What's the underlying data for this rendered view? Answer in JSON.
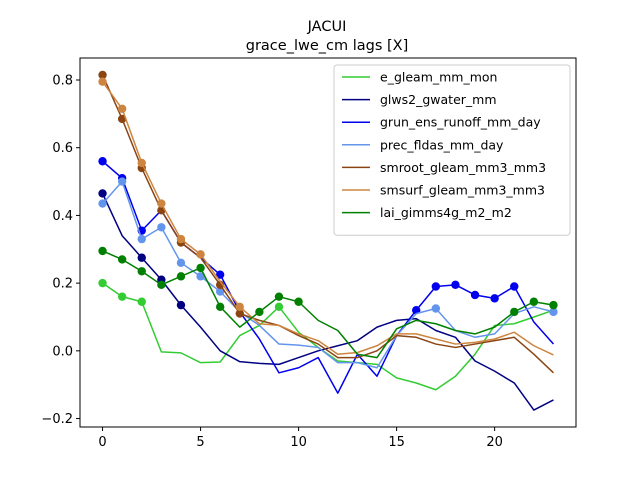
{
  "chart_data": {
    "type": "line",
    "title": "JACUI",
    "subtitle": "grace_lwe_cm lags [X]",
    "xlabel": "",
    "ylabel": "",
    "xlim": [
      -1.15,
      24.15
    ],
    "ylim": [
      -0.225,
      0.865
    ],
    "xticks": [
      0,
      5,
      10,
      15,
      20
    ],
    "yticks": [
      -0.2,
      0.0,
      0.2,
      0.4,
      0.6,
      0.8
    ],
    "ytick_labels": [
      "−0.2",
      "0.0",
      "0.2",
      "0.4",
      "0.6",
      "0.8"
    ],
    "grid": false,
    "legend_position": "upper right",
    "x": [
      0,
      1,
      2,
      3,
      4,
      5,
      6,
      7,
      8,
      9,
      10,
      11,
      12,
      13,
      14,
      15,
      16,
      17,
      18,
      19,
      20,
      21,
      22,
      23
    ],
    "series": [
      {
        "name": "e_gleam_mm_mon",
        "color": "#33cc33",
        "values": [
          0.2,
          0.16,
          0.145,
          -0.003,
          -0.006,
          -0.035,
          -0.033,
          0.045,
          0.075,
          0.13,
          0.055,
          0.01,
          -0.03,
          -0.035,
          -0.04,
          -0.08,
          -0.095,
          -0.115,
          -0.075,
          -0.01,
          0.075,
          0.08,
          0.1,
          0.12
        ],
        "markers": [
          0,
          1,
          2,
          9
        ]
      },
      {
        "name": "glws2_gwater_mm",
        "color": "#000080",
        "values": [
          0.465,
          0.34,
          0.275,
          0.21,
          0.135,
          0.07,
          0.0,
          -0.032,
          -0.037,
          -0.04,
          -0.02,
          0.0,
          0.015,
          0.03,
          0.07,
          0.09,
          0.095,
          0.06,
          0.04,
          -0.03,
          -0.06,
          -0.095,
          -0.175,
          -0.145
        ],
        "markers": [
          0,
          2,
          3,
          4
        ]
      },
      {
        "name": "grun_ens_runoff_mm_day",
        "color": "#0000ee",
        "values": [
          0.56,
          0.51,
          0.355,
          0.415,
          0.32,
          0.275,
          0.225,
          0.115,
          0.035,
          -0.065,
          -0.05,
          -0.02,
          -0.125,
          -0.01,
          -0.075,
          0.045,
          0.12,
          0.19,
          0.195,
          0.165,
          0.155,
          0.19,
          0.085,
          0.02
        ],
        "markers": [
          0,
          1,
          2,
          6,
          16,
          17,
          18,
          19,
          20,
          21
        ]
      },
      {
        "name": "prec_fldas_mm_day",
        "color": "#6495ed",
        "values": [
          0.435,
          0.5,
          0.33,
          0.365,
          0.26,
          0.22,
          0.175,
          0.115,
          0.075,
          0.02,
          0.017,
          0.01,
          -0.035,
          -0.035,
          -0.05,
          0.045,
          0.11,
          0.125,
          0.06,
          0.04,
          0.05,
          0.11,
          0.13,
          0.115
        ],
        "markers": [
          0,
          1,
          2,
          3,
          4,
          5,
          6,
          17,
          23
        ]
      },
      {
        "name": "smroot_gleam_mm3_mm3",
        "color": "#8b4513",
        "values": [
          0.815,
          0.685,
          0.54,
          0.415,
          0.32,
          0.275,
          0.195,
          0.11,
          0.09,
          0.075,
          0.045,
          0.02,
          -0.02,
          -0.02,
          0.0,
          0.045,
          0.04,
          0.02,
          0.01,
          0.02,
          0.03,
          0.04,
          -0.01,
          -0.065
        ],
        "markers": [
          0,
          1,
          2,
          3,
          4,
          6,
          7
        ]
      },
      {
        "name": "smsurf_gleam_mm3_mm3",
        "color": "#cd853f",
        "values": [
          0.795,
          0.715,
          0.555,
          0.435,
          0.33,
          0.285,
          0.205,
          0.13,
          0.08,
          0.075,
          0.05,
          0.03,
          -0.01,
          -0.005,
          0.015,
          0.05,
          0.05,
          0.035,
          0.02,
          0.025,
          0.035,
          0.055,
          0.015,
          -0.012
        ],
        "markers": [
          0,
          1,
          2,
          3,
          4,
          5,
          7
        ]
      },
      {
        "name": "lai_gimms4g_m2_m2",
        "color": "#008000",
        "values": [
          0.295,
          0.27,
          0.235,
          0.195,
          0.22,
          0.245,
          0.13,
          0.07,
          0.115,
          0.16,
          0.145,
          0.09,
          0.06,
          -0.01,
          -0.02,
          0.065,
          0.09,
          0.08,
          0.06,
          0.05,
          0.07,
          0.115,
          0.145,
          0.135
        ],
        "markers": [
          0,
          1,
          2,
          3,
          4,
          5,
          6,
          8,
          9,
          10,
          21,
          22,
          23
        ]
      }
    ]
  }
}
